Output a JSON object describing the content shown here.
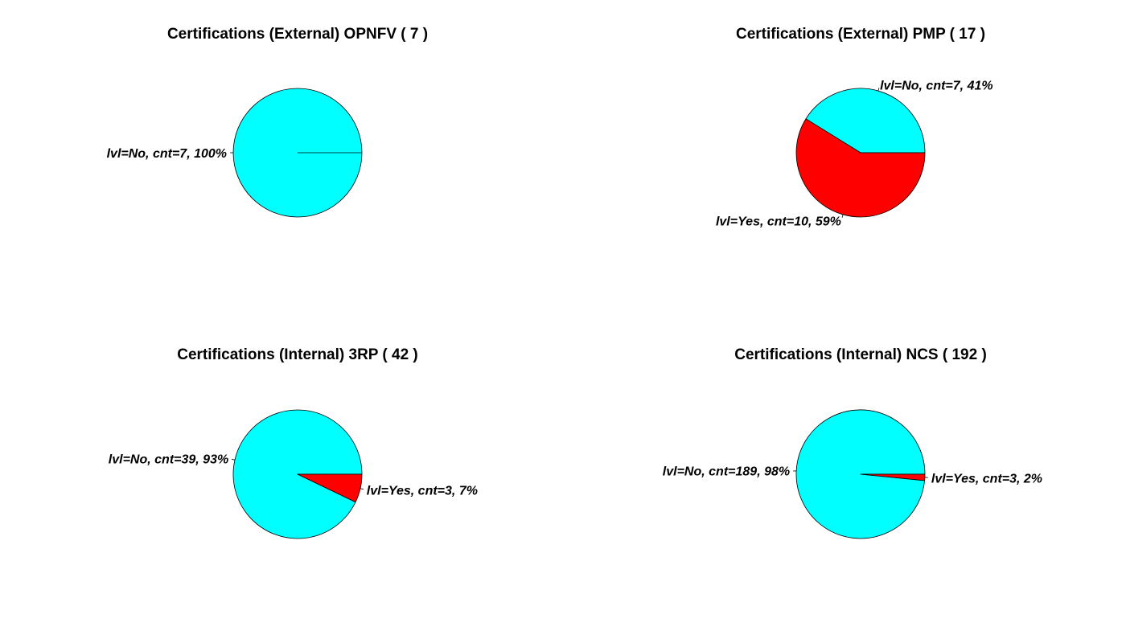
{
  "chart_data": [
    {
      "type": "pie",
      "title": "Certifications (External) OPNFV ( 7 )",
      "slices": [
        {
          "label": "lvl=No, cnt=7, 100%",
          "value": 7,
          "color": "#00FFFF"
        }
      ]
    },
    {
      "type": "pie",
      "title": "Certifications (External) PMP ( 17 )",
      "slices": [
        {
          "label": "lvl=No, cnt=7, 41%",
          "value": 7,
          "color": "#00FFFF"
        },
        {
          "label": "lvl=Yes, cnt=10, 59%",
          "value": 10,
          "color": "#FF0000"
        }
      ]
    },
    {
      "type": "pie",
      "title": "Certifications (Internal) 3RP ( 42 )",
      "slices": [
        {
          "label": "lvl=No, cnt=39, 93%",
          "value": 39,
          "color": "#00FFFF"
        },
        {
          "label": "lvl=Yes, cnt=3, 7%",
          "value": 3,
          "color": "#FF0000"
        }
      ]
    },
    {
      "type": "pie",
      "title": "Certifications (Internal) NCS ( 192 )",
      "slices": [
        {
          "label": "lvl=No, cnt=189, 98%",
          "value": 189,
          "color": "#00FFFF"
        },
        {
          "label": "lvl=Yes, cnt=3, 2%",
          "value": 3,
          "color": "#FF0000"
        }
      ]
    }
  ]
}
